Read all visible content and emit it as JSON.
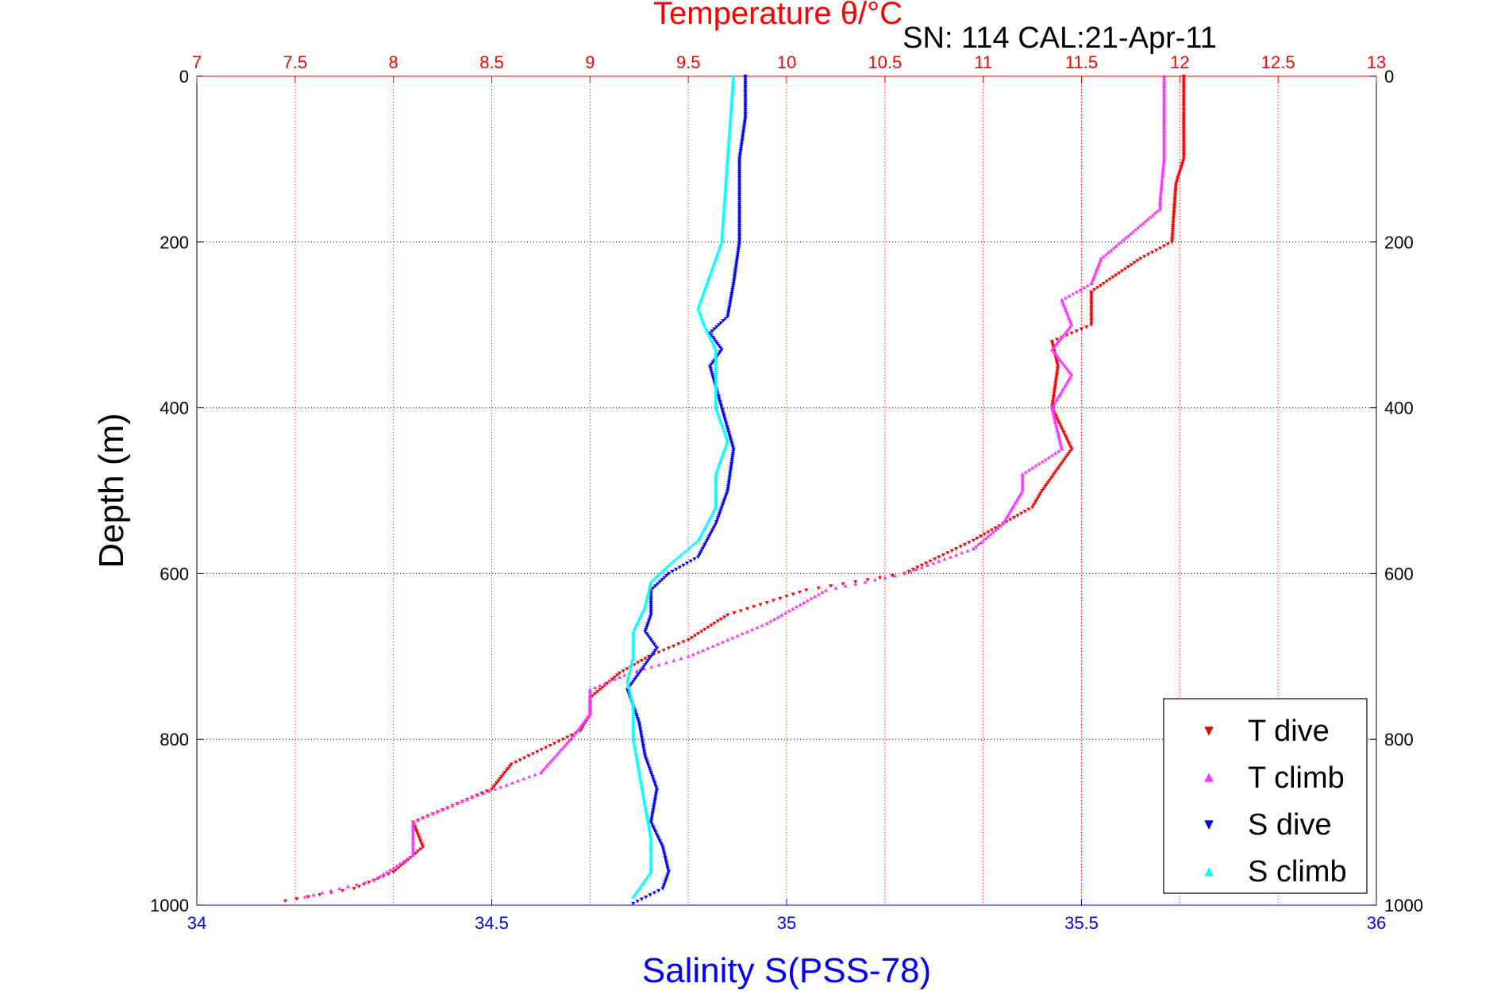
{
  "chart_data": {
    "type": "scatter",
    "title": "Temperature θ/°C",
    "subtitle": "SN: 114  CAL:21-Apr-11",
    "xlabel_bottom": "Salinity S(PSS-78)",
    "xlabel_top": "Temperature θ/°C",
    "ylabel": "Depth (m)",
    "y_reversed": true,
    "ylim": [
      0,
      1000
    ],
    "yticks": [
      "0",
      "200",
      "400",
      "600",
      "800",
      "1000"
    ],
    "xlim_salinity": [
      34,
      36
    ],
    "xticks_salinity": [
      "34",
      "34.5",
      "35",
      "35.5",
      "36"
    ],
    "xlim_temperature": [
      7,
      13
    ],
    "xticks_temperature": [
      "7",
      "7.5",
      "8",
      "8.5",
      "9",
      "9.5",
      "10",
      "10.5",
      "11",
      "11.5",
      "12",
      "12.5",
      "13"
    ],
    "grid": true,
    "legend_position": "bottom-right",
    "colors": {
      "temperature_axis": "#ff0000",
      "salinity_axis": "#0000ff",
      "T dive": "#ff0000",
      "T climb": "#ff33ff",
      "S dive": "#0000ff",
      "S climb": "#00ffff"
    },
    "series": [
      {
        "name": "T dive",
        "axis": "temperature",
        "marker": "triangle-down",
        "depth": [
          0,
          50,
          100,
          130,
          200,
          220,
          260,
          300,
          320,
          350,
          400,
          450,
          500,
          520,
          560,
          600,
          620,
          650,
          680,
          700,
          720,
          750,
          770,
          790,
          830,
          860,
          900,
          930,
          960,
          980,
          995
        ],
        "values": [
          12.02,
          12.02,
          12.02,
          11.98,
          11.96,
          11.8,
          11.55,
          11.55,
          11.35,
          11.38,
          11.35,
          11.45,
          11.3,
          11.25,
          10.95,
          10.6,
          10.1,
          9.7,
          9.5,
          9.3,
          9.15,
          9.0,
          9.0,
          8.95,
          8.6,
          8.5,
          8.1,
          8.15,
          8.0,
          7.8,
          7.45
        ]
      },
      {
        "name": "T climb",
        "axis": "temperature",
        "marker": "triangle-up",
        "depth": [
          0,
          100,
          150,
          160,
          220,
          250,
          270,
          300,
          330,
          360,
          400,
          450,
          480,
          500,
          540,
          570,
          600,
          620,
          660,
          700,
          720,
          740,
          770,
          800,
          840,
          870,
          900,
          940,
          970,
          990
        ],
        "values": [
          11.92,
          11.92,
          11.9,
          11.9,
          11.6,
          11.55,
          11.4,
          11.45,
          11.35,
          11.45,
          11.35,
          11.4,
          11.2,
          11.2,
          11.1,
          10.95,
          10.6,
          10.2,
          9.9,
          9.5,
          9.2,
          9.0,
          9.0,
          8.9,
          8.75,
          8.4,
          8.1,
          8.1,
          7.9,
          7.55
        ]
      },
      {
        "name": "S dive",
        "axis": "salinity",
        "marker": "triangle-down",
        "depth": [
          0,
          50,
          100,
          150,
          200,
          250,
          290,
          310,
          330,
          350,
          400,
          450,
          500,
          540,
          580,
          600,
          620,
          650,
          670,
          690,
          710,
          740,
          780,
          820,
          860,
          900,
          930,
          960,
          980,
          998
        ],
        "values": [
          34.93,
          34.93,
          34.92,
          34.92,
          34.92,
          34.91,
          34.9,
          34.87,
          34.89,
          34.87,
          34.89,
          34.91,
          34.9,
          34.88,
          34.85,
          34.8,
          34.77,
          34.77,
          34.76,
          34.78,
          34.76,
          34.73,
          34.75,
          34.76,
          34.78,
          34.77,
          34.79,
          34.8,
          34.79,
          34.74
        ]
      },
      {
        "name": "S climb",
        "axis": "salinity",
        "marker": "triangle-up",
        "depth": [
          0,
          100,
          200,
          240,
          260,
          280,
          300,
          330,
          360,
          400,
          440,
          480,
          520,
          560,
          590,
          610,
          640,
          670,
          700,
          730,
          760,
          800,
          840,
          880,
          920,
          960,
          990
        ],
        "values": [
          34.91,
          34.9,
          34.89,
          34.87,
          34.86,
          34.85,
          34.86,
          34.88,
          34.88,
          34.88,
          34.9,
          34.88,
          34.88,
          34.85,
          34.8,
          34.77,
          34.76,
          34.74,
          34.74,
          34.73,
          34.74,
          34.74,
          34.75,
          34.76,
          34.77,
          34.77,
          34.74
        ]
      }
    ]
  }
}
